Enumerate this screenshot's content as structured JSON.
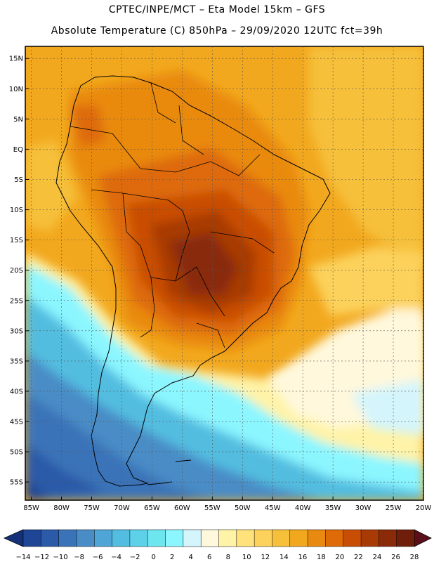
{
  "header": {
    "title_line1": "CPTEC/INPE/MCT –  Eta Model 15km – GFS",
    "title_line2": "Absolute Temperature (C) 850hPa – 29/09/2020 12UTC fct=39h"
  },
  "map": {
    "latitude_labels": [
      "15N",
      "10N",
      "5N",
      "EQ",
      "5S",
      "10S",
      "15S",
      "20S",
      "25S",
      "30S",
      "35S",
      "40S",
      "45S",
      "50S",
      "55S"
    ],
    "longitude_labels": [
      "85W",
      "80W",
      "75W",
      "70W",
      "65W",
      "60W",
      "55W",
      "50W",
      "45W",
      "40W",
      "35W",
      "30W",
      "25W",
      "20W"
    ],
    "lat_range": [
      17,
      -58
    ],
    "lon_range": [
      -86,
      -20
    ]
  },
  "colorbar": {
    "ticks": [
      "-14",
      "-12",
      "-10",
      "-8",
      "-6",
      "-4",
      "-2",
      "0",
      "2",
      "4",
      "6",
      "8",
      "10",
      "12",
      "14",
      "16",
      "18",
      "20",
      "22",
      "24",
      "26",
      "28"
    ],
    "colors": [
      "#1e4596",
      "#2a5aa8",
      "#3a73b8",
      "#4a8cc6",
      "#4fa6d6",
      "#52bde0",
      "#5dd1e8",
      "#6ee6f0",
      "#8cf6ff",
      "#d4f5fc",
      "#fff8dc",
      "#fff3a8",
      "#ffe27a",
      "#fcd25c",
      "#f6c03a",
      "#f2a81e",
      "#e98a10",
      "#de6a08",
      "#c94e05",
      "#a83a06",
      "#8a2a08",
      "#6e1e0a"
    ],
    "under_color": "#14317a",
    "over_color": "#5a0f1a"
  }
}
